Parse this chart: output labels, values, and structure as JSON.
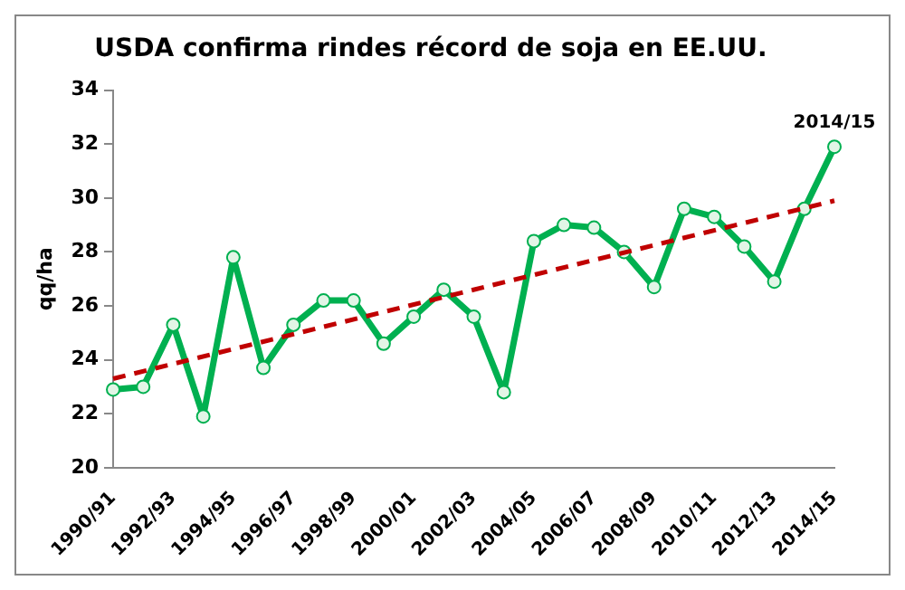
{
  "chart_data": {
    "type": "line",
    "title": "USDA confirma rindes récord de soja en EE.UU.",
    "ylabel": "qq/ha",
    "categories": [
      "1990/91",
      null,
      "1992/93",
      null,
      "1994/95",
      null,
      "1996/97",
      null,
      "1998/99",
      null,
      "2000/01",
      null,
      "2002/03",
      null,
      "2004/05",
      null,
      "2006/07",
      null,
      "2008/09",
      null,
      "2010/11",
      null,
      "2012/13",
      null,
      "2014/15"
    ],
    "series": [
      {
        "color": "#00b050",
        "marker": "circle",
        "values": [
          22.9,
          23.0,
          25.3,
          21.9,
          27.8,
          23.7,
          25.3,
          26.2,
          26.2,
          24.6,
          25.6,
          26.6,
          25.6,
          22.8,
          28.4,
          29.0,
          28.9,
          28.0,
          26.7,
          29.6,
          29.3,
          28.2,
          26.9,
          29.6,
          31.9
        ]
      },
      {
        "type": "line",
        "color": "#c00000",
        "line_style": "dashed",
        "marker": "none",
        "x": [
          "1990/91",
          "2014/15"
        ],
        "values": [
          23.3,
          29.9
        ]
      }
    ],
    "annotations": [
      {
        "text": "2014/15",
        "x": "2014/15",
        "y": 31.9
      }
    ],
    "ylim": [
      20,
      34
    ],
    "yticks": [
      20,
      22,
      24,
      26,
      28,
      30,
      32,
      34
    ],
    "grid": false,
    "legend": false
  }
}
